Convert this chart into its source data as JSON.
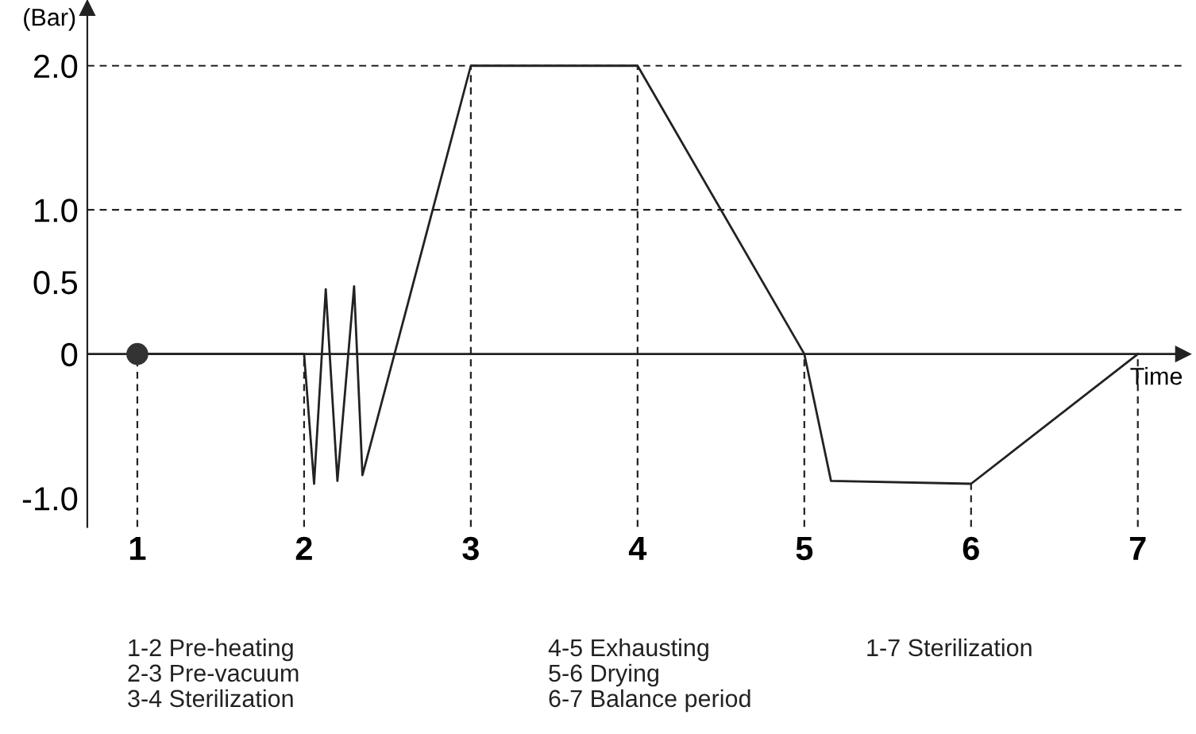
{
  "chart_data": {
    "type": "line",
    "xlabel": "Time",
    "ylabel": "(Bar)",
    "xlim": [
      0.7,
      7.27
    ],
    "ylim": [
      -1.2,
      2.4
    ],
    "xticks": [
      1,
      2,
      3,
      4,
      5,
      6,
      7
    ],
    "yticks": [
      {
        "value": 2,
        "label": "2.0"
      },
      {
        "value": 1,
        "label": "1.0"
      },
      {
        "value": 0.5,
        "label": "0.5"
      },
      {
        "value": 0,
        "label": "0"
      },
      {
        "value": -1,
        "label": "-1.0"
      }
    ],
    "series": [
      {
        "color": "#222222",
        "x": [
          1,
          2,
          2.06,
          2.13,
          2.2,
          2.3,
          2.35,
          3,
          4,
          5,
          5.16,
          6,
          7
        ],
        "values": [
          0,
          0,
          -0.9,
          0.45,
          -0.88,
          0.47,
          -0.84,
          2.0,
          2.0,
          0,
          -0.88,
          -0.9,
          0
        ]
      },
      {
        "type": "scatter",
        "color": "#333333",
        "marker": "circle",
        "x": [
          1
        ],
        "values": [
          0
        ]
      }
    ],
    "ref_lines": [
      {
        "axis": "y",
        "value": 0,
        "line_style": "solid",
        "color": "#222222"
      },
      {
        "axis": "y",
        "value": 2,
        "line_style": "dashed",
        "color": "#222222"
      },
      {
        "axis": "y",
        "value": 1,
        "line_style": "dashed",
        "color": "#222222"
      },
      {
        "axis": "x",
        "value": 1,
        "line_style": "dashed",
        "color": "#222222"
      },
      {
        "axis": "x",
        "value": 2,
        "line_style": "dashed",
        "color": "#222222"
      },
      {
        "axis": "x",
        "value": 3,
        "line_style": "dashed",
        "color": "#222222"
      },
      {
        "axis": "x",
        "value": 4,
        "line_style": "dashed",
        "color": "#222222"
      },
      {
        "axis": "x",
        "value": 5,
        "line_style": "dashed",
        "color": "#222222"
      },
      {
        "axis": "x",
        "value": 6,
        "line_style": "dashed",
        "color": "#222222"
      },
      {
        "axis": "x",
        "value": 7,
        "line_style": "dashed",
        "color": "#222222"
      }
    ],
    "grid": false,
    "legend": false,
    "annotations": [
      "1-2 Pre-heating",
      "2-3 Pre-vacuum",
      "3-4 Sterilization",
      "4-5 Exhausting",
      "5-6 Drying",
      "6-7 Balance period",
      "1-7 Sterilization"
    ]
  }
}
